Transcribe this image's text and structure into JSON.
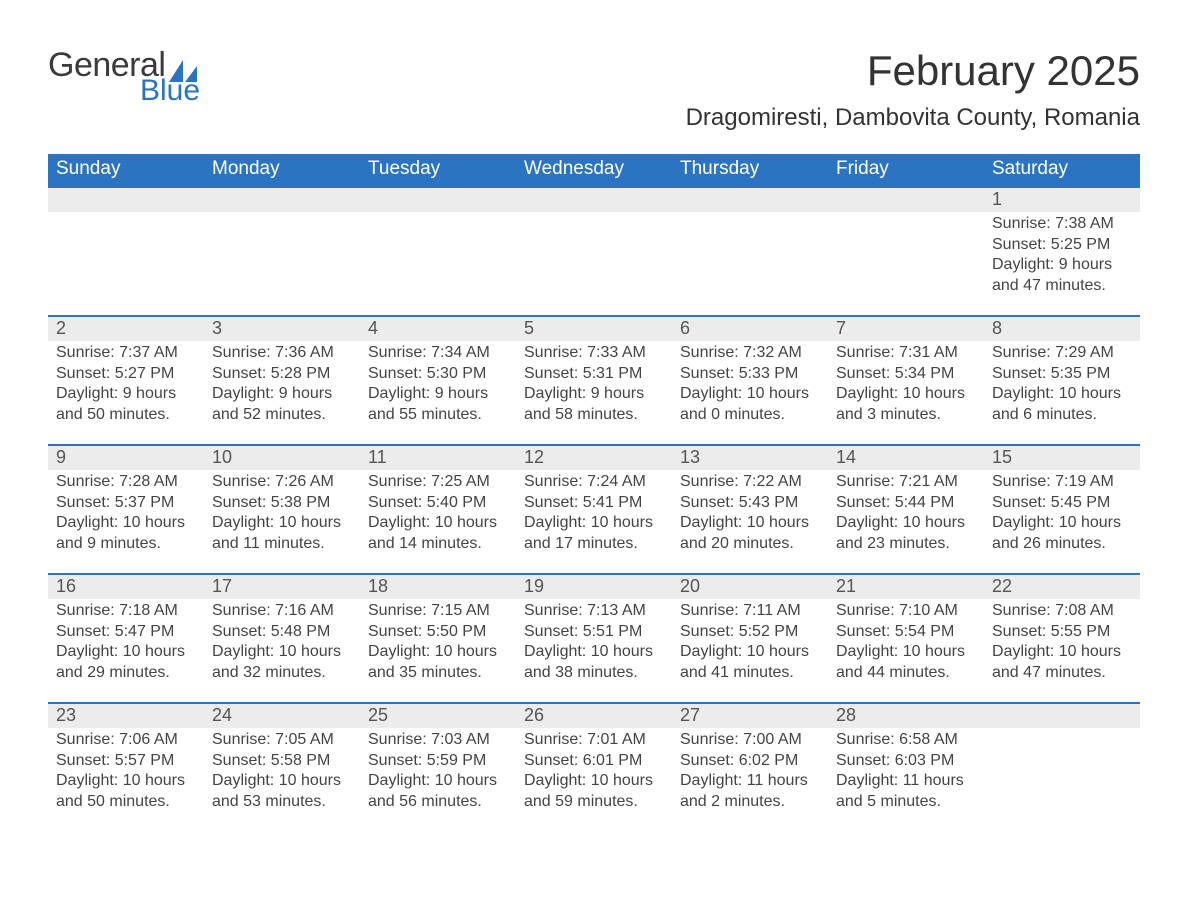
{
  "brand": {
    "word1": "General",
    "word2": "Blue",
    "color_brand": "#2a74c1",
    "color_text": "#3a3a3a"
  },
  "title": {
    "month_year": "February 2025",
    "location": "Dragomiresti, Dambovita County, Romania"
  },
  "styling": {
    "header_bg": "#2a74c1",
    "header_text": "#ffffff",
    "daynum_bg": "#ececec",
    "row_border": "#2a74c1",
    "page_bg": "#ffffff",
    "body_text": "#444444",
    "th_fontsize": 19,
    "month_fontsize": 42,
    "location_fontsize": 24,
    "cell_fontsize": 16
  },
  "weekdays": [
    "Sunday",
    "Monday",
    "Tuesday",
    "Wednesday",
    "Thursday",
    "Friday",
    "Saturday"
  ],
  "labels": {
    "sunrise": "Sunrise:",
    "sunset": "Sunset:",
    "daylight": "Daylight:"
  },
  "weeks": [
    [
      null,
      null,
      null,
      null,
      null,
      null,
      {
        "n": "1",
        "sunrise": "7:38 AM",
        "sunset": "5:25 PM",
        "daylight": "9 hours and 47 minutes."
      }
    ],
    [
      {
        "n": "2",
        "sunrise": "7:37 AM",
        "sunset": "5:27 PM",
        "daylight": "9 hours and 50 minutes."
      },
      {
        "n": "3",
        "sunrise": "7:36 AM",
        "sunset": "5:28 PM",
        "daylight": "9 hours and 52 minutes."
      },
      {
        "n": "4",
        "sunrise": "7:34 AM",
        "sunset": "5:30 PM",
        "daylight": "9 hours and 55 minutes."
      },
      {
        "n": "5",
        "sunrise": "7:33 AM",
        "sunset": "5:31 PM",
        "daylight": "9 hours and 58 minutes."
      },
      {
        "n": "6",
        "sunrise": "7:32 AM",
        "sunset": "5:33 PM",
        "daylight": "10 hours and 0 minutes."
      },
      {
        "n": "7",
        "sunrise": "7:31 AM",
        "sunset": "5:34 PM",
        "daylight": "10 hours and 3 minutes."
      },
      {
        "n": "8",
        "sunrise": "7:29 AM",
        "sunset": "5:35 PM",
        "daylight": "10 hours and 6 minutes."
      }
    ],
    [
      {
        "n": "9",
        "sunrise": "7:28 AM",
        "sunset": "5:37 PM",
        "daylight": "10 hours and 9 minutes."
      },
      {
        "n": "10",
        "sunrise": "7:26 AM",
        "sunset": "5:38 PM",
        "daylight": "10 hours and 11 minutes."
      },
      {
        "n": "11",
        "sunrise": "7:25 AM",
        "sunset": "5:40 PM",
        "daylight": "10 hours and 14 minutes."
      },
      {
        "n": "12",
        "sunrise": "7:24 AM",
        "sunset": "5:41 PM",
        "daylight": "10 hours and 17 minutes."
      },
      {
        "n": "13",
        "sunrise": "7:22 AM",
        "sunset": "5:43 PM",
        "daylight": "10 hours and 20 minutes."
      },
      {
        "n": "14",
        "sunrise": "7:21 AM",
        "sunset": "5:44 PM",
        "daylight": "10 hours and 23 minutes."
      },
      {
        "n": "15",
        "sunrise": "7:19 AM",
        "sunset": "5:45 PM",
        "daylight": "10 hours and 26 minutes."
      }
    ],
    [
      {
        "n": "16",
        "sunrise": "7:18 AM",
        "sunset": "5:47 PM",
        "daylight": "10 hours and 29 minutes."
      },
      {
        "n": "17",
        "sunrise": "7:16 AM",
        "sunset": "5:48 PM",
        "daylight": "10 hours and 32 minutes."
      },
      {
        "n": "18",
        "sunrise": "7:15 AM",
        "sunset": "5:50 PM",
        "daylight": "10 hours and 35 minutes."
      },
      {
        "n": "19",
        "sunrise": "7:13 AM",
        "sunset": "5:51 PM",
        "daylight": "10 hours and 38 minutes."
      },
      {
        "n": "20",
        "sunrise": "7:11 AM",
        "sunset": "5:52 PM",
        "daylight": "10 hours and 41 minutes."
      },
      {
        "n": "21",
        "sunrise": "7:10 AM",
        "sunset": "5:54 PM",
        "daylight": "10 hours and 44 minutes."
      },
      {
        "n": "22",
        "sunrise": "7:08 AM",
        "sunset": "5:55 PM",
        "daylight": "10 hours and 47 minutes."
      }
    ],
    [
      {
        "n": "23",
        "sunrise": "7:06 AM",
        "sunset": "5:57 PM",
        "daylight": "10 hours and 50 minutes."
      },
      {
        "n": "24",
        "sunrise": "7:05 AM",
        "sunset": "5:58 PM",
        "daylight": "10 hours and 53 minutes."
      },
      {
        "n": "25",
        "sunrise": "7:03 AM",
        "sunset": "5:59 PM",
        "daylight": "10 hours and 56 minutes."
      },
      {
        "n": "26",
        "sunrise": "7:01 AM",
        "sunset": "6:01 PM",
        "daylight": "10 hours and 59 minutes."
      },
      {
        "n": "27",
        "sunrise": "7:00 AM",
        "sunset": "6:02 PM",
        "daylight": "11 hours and 2 minutes."
      },
      {
        "n": "28",
        "sunrise": "6:58 AM",
        "sunset": "6:03 PM",
        "daylight": "11 hours and 5 minutes."
      },
      null
    ]
  ]
}
